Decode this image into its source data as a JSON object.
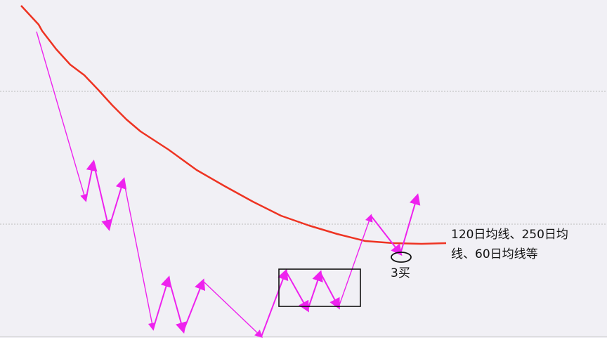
{
  "chart_data": {
    "type": "line",
    "grid": "horizontal dashed",
    "series": [
      {
        "style": "moving-average",
        "color": "#ee3322",
        "points": [
          [
            30,
            8
          ],
          [
            55,
            35
          ],
          [
            60,
            44
          ],
          [
            80,
            70
          ],
          [
            100,
            92
          ],
          [
            120,
            107
          ],
          [
            140,
            128
          ],
          [
            160,
            150
          ],
          [
            180,
            170
          ],
          [
            200,
            187
          ],
          [
            240,
            213
          ],
          [
            280,
            242
          ],
          [
            320,
            265
          ],
          [
            360,
            287
          ],
          [
            400,
            307
          ],
          [
            440,
            321
          ],
          [
            480,
            333
          ],
          [
            520,
            343
          ],
          [
            560,
            346
          ],
          [
            600,
            347
          ],
          [
            635,
            346
          ]
        ]
      },
      {
        "style": "zigzag",
        "color": "#ee22ee",
        "points": [
          [
            52,
            45
          ],
          [
            122,
            285
          ],
          [
            133,
            231
          ],
          [
            155,
            325
          ],
          [
            176,
            256
          ],
          [
            218,
            468
          ],
          [
            240,
            396
          ],
          [
            261,
            471
          ],
          [
            289,
            400
          ],
          [
            372,
            479
          ],
          [
            407,
            386
          ],
          [
            438,
            441
          ],
          [
            456,
            388
          ],
          [
            482,
            437
          ],
          [
            528,
            307
          ],
          [
            570,
            361
          ],
          [
            594,
            279
          ]
        ]
      }
    ],
    "annotations": {
      "box": "consolidation zone",
      "buy_point": "3买",
      "moving_average_note": "120日均线、250日均线、60日均线等"
    }
  },
  "labels": {
    "buy_label": "3买",
    "ma_note_line1": "120日均线、250日均",
    "ma_note_line2": "线、60日均线等"
  },
  "colors": {
    "background": "#f1f0f5",
    "moving_average": "#ee3322",
    "zigzag": "#ee22ee",
    "gridline": "#bbbbbb",
    "annotation": "#111111"
  }
}
